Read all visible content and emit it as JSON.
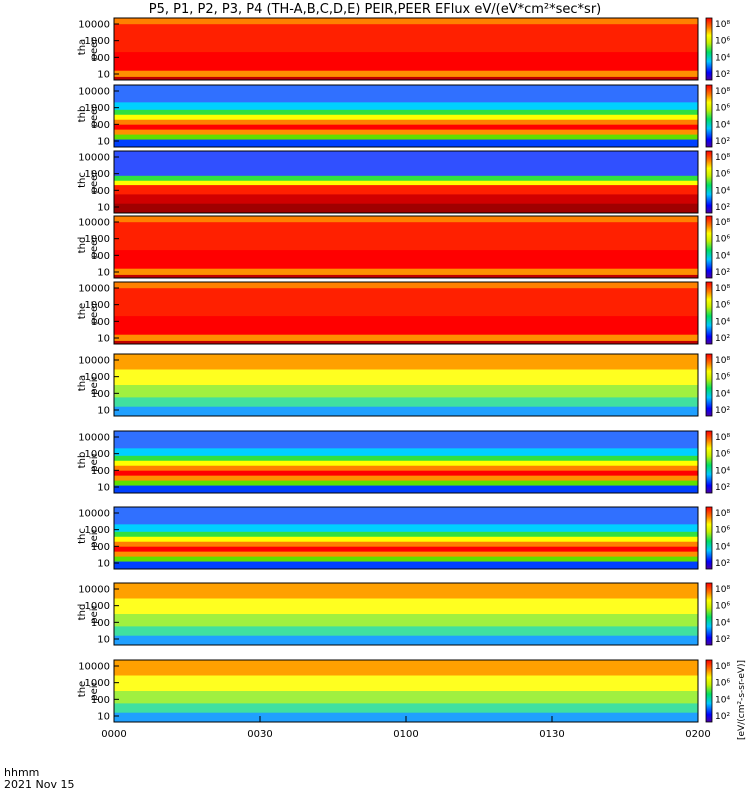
{
  "title": "P5, P1, P2, P3, P4 (TH-A,B,C,D,E) PEIR,PEER EFlux eV/(eV*cm²*sec*sr)",
  "footer": {
    "line1": "hhmm",
    "line2": "2021 Nov 15"
  },
  "colorbar_unit": "[eV/(cm²-s-sr-eV)]",
  "chart_data": {
    "type": "heatmap",
    "title": "P5, P1, P2, P3, P4 (TH-A,B,C,D,E) PEIR,PEER EFlux eV/(eV*cm²*sec*sr)",
    "x_ticks": [
      "0000",
      "0030",
      "0100",
      "0130",
      "0200"
    ],
    "x_range": [
      "00:00",
      "02:00"
    ],
    "y_scale": "log",
    "colorbar_scale": "log",
    "panels": [
      {
        "label": [
          "tha",
          "peer"
        ],
        "y_ticks": [
          "10000",
          "1000",
          "100",
          "10"
        ],
        "colorbar_ticks": [
          "10⁸",
          "10⁶",
          "10⁴",
          "10²"
        ],
        "dominant": "red"
      },
      {
        "label": [
          "thb",
          "peer"
        ],
        "y_ticks": [
          "10000",
          "1000",
          "100",
          "10"
        ],
        "colorbar_ticks": [
          "10⁸",
          "10⁶",
          "10⁴",
          "10²"
        ],
        "dominant": "banded"
      },
      {
        "label": [
          "thc",
          "peer"
        ],
        "y_ticks": [
          "10000",
          "1000",
          "100",
          "10"
        ],
        "colorbar_ticks": [
          "10⁸",
          "10⁶",
          "10⁴",
          "10²"
        ],
        "dominant": "banded-dark"
      },
      {
        "label": [
          "thd",
          "peer"
        ],
        "y_ticks": [
          "10000",
          "1000",
          "100",
          "10"
        ],
        "colorbar_ticks": [
          "10⁸",
          "10⁶",
          "10⁴",
          "10²"
        ],
        "dominant": "red"
      },
      {
        "label": [
          "the",
          "peer"
        ],
        "y_ticks": [
          "10000",
          "1000",
          "100",
          "10"
        ],
        "colorbar_ticks": [
          "10⁸",
          "10⁶",
          "10⁴",
          "10²"
        ],
        "dominant": "red"
      },
      {
        "label": [
          "tha",
          "peir"
        ],
        "y_ticks": [
          "10000",
          "1000",
          "100",
          "10"
        ],
        "colorbar_ticks": [
          "10⁸",
          "10⁶",
          "10⁴",
          "10²"
        ],
        "dominant": "yellow"
      },
      {
        "label": [
          "thb",
          "peir"
        ],
        "y_ticks": [
          "10000",
          "1000",
          "100",
          "10"
        ],
        "colorbar_ticks": [
          "10⁸",
          "10⁶",
          "10⁴",
          "10²"
        ],
        "dominant": "banded"
      },
      {
        "label": [
          "thc",
          "peir"
        ],
        "y_ticks": [
          "10000",
          "1000",
          "100",
          "10"
        ],
        "colorbar_ticks": [
          "10⁸",
          "10⁶",
          "10⁴",
          "10²"
        ],
        "dominant": "banded"
      },
      {
        "label": [
          "thd",
          "peir"
        ],
        "y_ticks": [
          "10000",
          "1000",
          "100",
          "10"
        ],
        "colorbar_ticks": [
          "10⁸",
          "10⁶",
          "10⁴",
          "10²"
        ],
        "dominant": "yellow"
      },
      {
        "label": [
          "the",
          "peir"
        ],
        "y_ticks": [
          "10000",
          "1000",
          "100",
          "10"
        ],
        "colorbar_ticks": [
          "10⁸",
          "10⁶",
          "10⁴",
          "10²"
        ],
        "dominant": "yellow"
      }
    ]
  }
}
